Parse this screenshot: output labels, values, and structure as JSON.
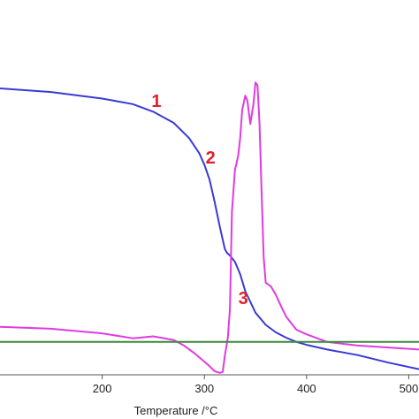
{
  "chart_data": {
    "type": "line",
    "title": "",
    "xlabel": "Temperature /°C",
    "ylabel": "",
    "xlim": [
      100,
      510
    ],
    "ylim": [
      0,
      100
    ],
    "xticks": [
      200,
      300,
      400,
      500
    ],
    "xtick_labels": [
      "200",
      "300",
      "400",
      "500"
    ],
    "grid": false,
    "legend": "none",
    "series": [
      {
        "color": "#3a3ad6",
        "x": [
          100,
          150,
          200,
          230,
          250,
          270,
          285,
          295,
          300,
          305,
          310,
          315,
          320,
          322,
          325,
          330,
          335,
          340,
          350,
          360,
          370,
          380,
          390,
          400,
          420,
          450,
          480,
          510
        ],
        "y": [
          87.1,
          86.0,
          84.0,
          82.3,
          80.0,
          76.6,
          72.0,
          67.4,
          63.9,
          59.4,
          52.6,
          45.1,
          38.3,
          37.1,
          36.3,
          34.3,
          30.6,
          25.4,
          18.9,
          15.2,
          12.9,
          11.3,
          10.0,
          9.1,
          7.7,
          6.0,
          3.7,
          1.7
        ]
      },
      {
        "color": "#e13ae1",
        "x": [
          100,
          150,
          200,
          230,
          250,
          270,
          280,
          290,
          300,
          305,
          310,
          315,
          318,
          320,
          323,
          325,
          327,
          330,
          331,
          333,
          335,
          337,
          340,
          342,
          345,
          348,
          350,
          352,
          354,
          356,
          358,
          360,
          365,
          370,
          375,
          380,
          390,
          400,
          420,
          450,
          480,
          510
        ],
        "y": [
          14.6,
          14.0,
          12.6,
          11.1,
          11.7,
          10.6,
          8.9,
          6.6,
          4.0,
          2.6,
          1.1,
          0.6,
          0.9,
          5.7,
          11.4,
          20.0,
          49.7,
          62.6,
          63.7,
          66.6,
          72.0,
          80.6,
          84.9,
          83.4,
          76.3,
          82.3,
          88.9,
          88.0,
          76.3,
          54.9,
          35.7,
          28.0,
          26.9,
          24.3,
          20.9,
          17.7,
          13.7,
          12.3,
          10.0,
          8.9,
          8.3,
          7.7
        ]
      },
      {
        "color": "#3a8a3a",
        "x": [
          100,
          510
        ],
        "y": [
          10.0,
          10.0
        ]
      }
    ],
    "annotations": [
      {
        "text": "1",
        "x": 253,
        "y": 82.9,
        "color": "#e0202a"
      },
      {
        "text": "2",
        "x": 306,
        "y": 65.7,
        "color": "#e0202a"
      },
      {
        "text": "3",
        "x": 338,
        "y": 22.9,
        "color": "#e0202a"
      }
    ]
  }
}
